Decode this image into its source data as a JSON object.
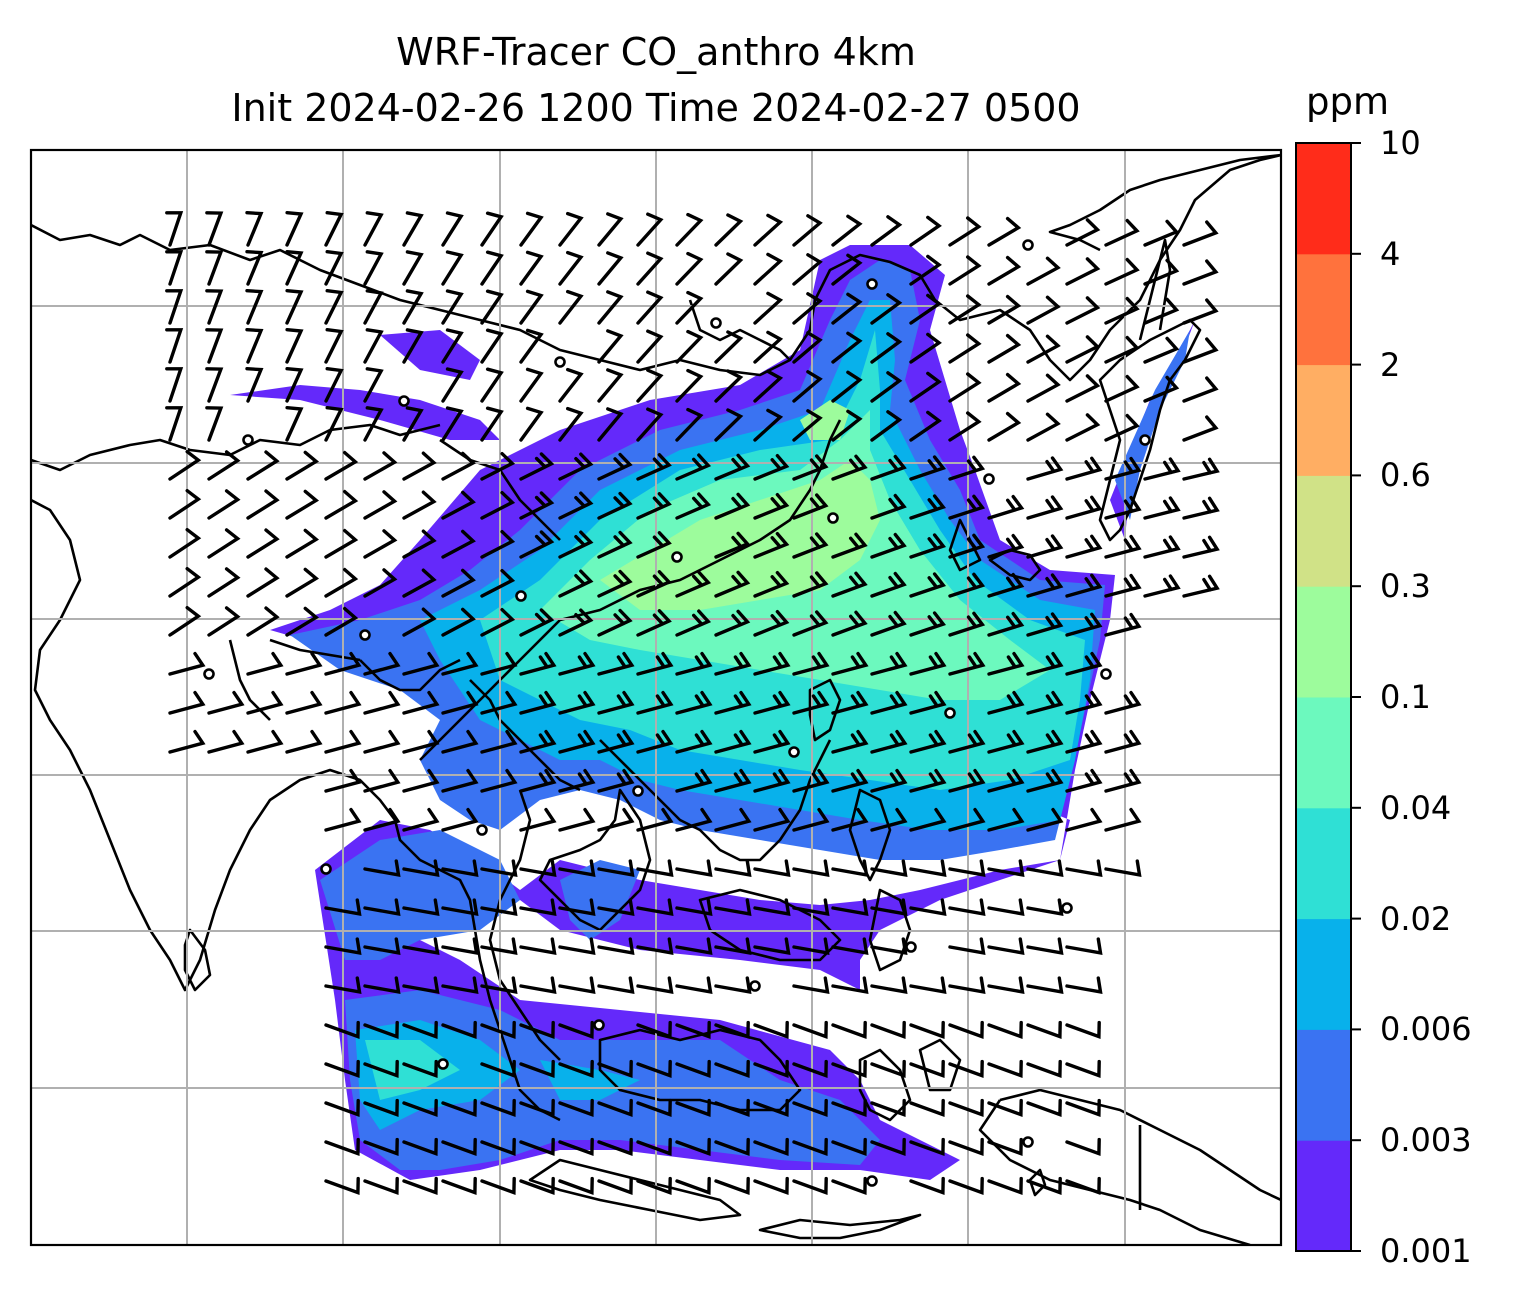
{
  "title": {
    "line1": "WRF-Tracer CO_anthro 4km",
    "line2": "Init 2024-02-26 1200 Time 2024-02-27 0500"
  },
  "colorbar": {
    "unit": "ppm",
    "ticks": [
      "0.001",
      "0.003",
      "0.006",
      "0.02",
      "0.04",
      "0.1",
      "0.3",
      "0.6",
      "2",
      "4",
      "10"
    ],
    "colors": [
      "#6429fa",
      "#3a73f2",
      "#08b1eb",
      "#2fe0d5",
      "#6cf9be",
      "#9dfc9c",
      "#d0e287",
      "#ffae63",
      "#ff723d",
      "#ff2c1a"
    ]
  },
  "map": {
    "graticule_color": "#b0b0b0",
    "coastline_color": "#000000",
    "wind_barb_color": "#000000"
  }
}
